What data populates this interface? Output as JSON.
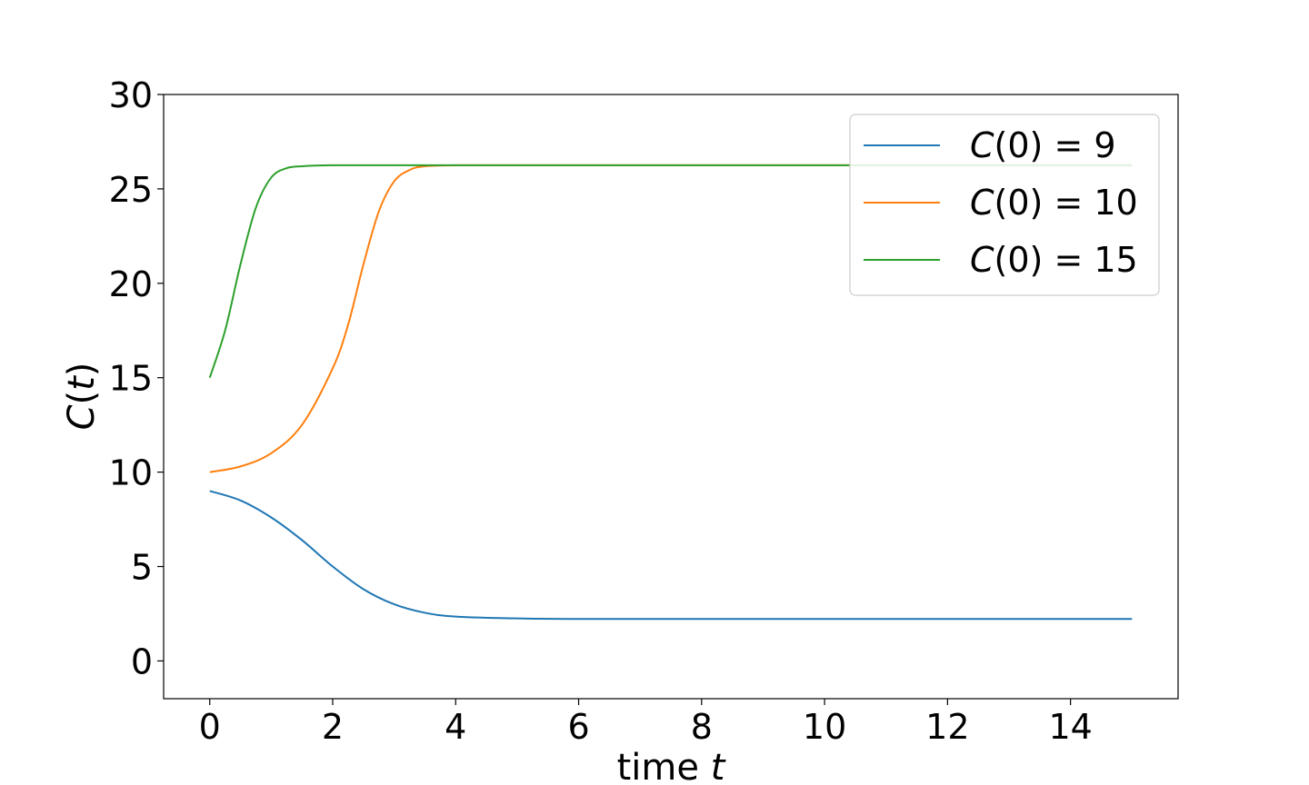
{
  "chart_data": {
    "type": "line",
    "title": "",
    "xlabel_text": "time ",
    "xlabel_var": "t",
    "ylabel_var": "C",
    "ylabel_arg": "t",
    "xlim": [
      -0.75,
      15.75
    ],
    "ylim": [
      -2,
      30
    ],
    "xticks": [
      0,
      2,
      4,
      6,
      8,
      10,
      12,
      14
    ],
    "yticks": [
      0,
      5,
      10,
      15,
      20,
      25,
      30
    ],
    "grid": false,
    "legend_position": "top-right",
    "series": [
      {
        "name": "C(0) = 9",
        "legend_var": "C",
        "legend_rest": "(0) = 9",
        "color": "#1f77b4",
        "x": [
          0,
          0.5,
          1,
          1.5,
          2,
          2.5,
          3,
          3.5,
          4,
          5,
          6,
          8,
          10,
          12,
          15
        ],
        "y": [
          9,
          8.5,
          7.6,
          6.4,
          5.0,
          3.8,
          3.0,
          2.55,
          2.35,
          2.25,
          2.22,
          2.22,
          2.22,
          2.22,
          2.22
        ]
      },
      {
        "name": "C(0) = 10",
        "legend_var": "C",
        "legend_rest": "(0) = 10",
        "color": "#ff7f0e",
        "x": [
          0,
          0.5,
          1,
          1.5,
          2,
          2.25,
          2.5,
          2.75,
          3,
          3.25,
          3.5,
          4,
          5,
          8,
          12,
          15
        ],
        "y": [
          10,
          10.3,
          11.0,
          12.5,
          15.5,
          17.8,
          21.0,
          23.8,
          25.4,
          26.0,
          26.2,
          26.25,
          26.25,
          26.25,
          26.25,
          26.25
        ]
      },
      {
        "name": "C(0) = 15",
        "legend_var": "C",
        "legend_rest": "(0) = 15",
        "color": "#2ca02c",
        "x": [
          0,
          0.25,
          0.5,
          0.75,
          1,
          1.25,
          1.5,
          2,
          3,
          5,
          8,
          12,
          15
        ],
        "y": [
          15,
          17.5,
          21.0,
          24.0,
          25.6,
          26.1,
          26.2,
          26.25,
          26.25,
          26.25,
          26.25,
          26.25,
          26.25
        ]
      }
    ]
  }
}
